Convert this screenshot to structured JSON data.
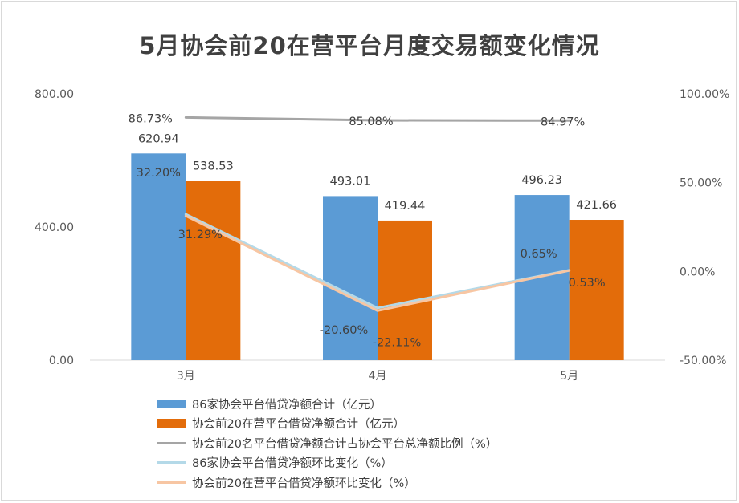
{
  "chart_data": {
    "type": "bar",
    "title": "5月协会前20在营平台月度交易额变化情况",
    "categories": [
      "3月",
      "4月",
      "5月"
    ],
    "y_left": {
      "ticks": [
        "0.00",
        "400.00",
        "800.00"
      ],
      "ylim": [
        0,
        800
      ]
    },
    "y_right": {
      "ticks": [
        "-50.00%",
        "0.00%",
        "50.00%",
        "100.00%"
      ],
      "ylim": [
        -50,
        100
      ]
    },
    "grid": false,
    "legend_position": "bottom",
    "bar_series": [
      {
        "name": "86家协会平台借贷净额合计（亿元）",
        "values": [
          620.94,
          493.01,
          496.23
        ],
        "labels": [
          "620.94",
          "493.01",
          "496.23"
        ],
        "color": "#5b9bd5",
        "axis": "left"
      },
      {
        "name": "协会前20在营平台借贷净额合计（亿元）",
        "values": [
          538.53,
          419.44,
          421.66
        ],
        "labels": [
          "538.53",
          "419.44",
          "421.66"
        ],
        "color": "#e36c0a",
        "axis": "left"
      }
    ],
    "line_series": [
      {
        "name": "协会前20名平台借贷净额合计占协会平台总净额比例（%）",
        "values": [
          86.73,
          85.08,
          84.97
        ],
        "labels": [
          "86.73%",
          "85.08%",
          "84.97%"
        ],
        "color": "#a5a5a5",
        "axis": "right"
      },
      {
        "name": "86家协会平台借贷净额环比变化（%）",
        "values": [
          32.2,
          -20.6,
          0.65
        ],
        "labels": [
          "32.20%",
          "-20.60%",
          "0.65%"
        ],
        "color": "#b4d9e8",
        "axis": "right"
      },
      {
        "name": "协会前20在营平台借贷净额环比变化（%）",
        "values": [
          31.29,
          -22.11,
          0.53
        ],
        "labels": [
          "31.29%",
          "-22.11%",
          "0.53%"
        ],
        "color": "#f7c6a3",
        "axis": "right"
      }
    ]
  }
}
